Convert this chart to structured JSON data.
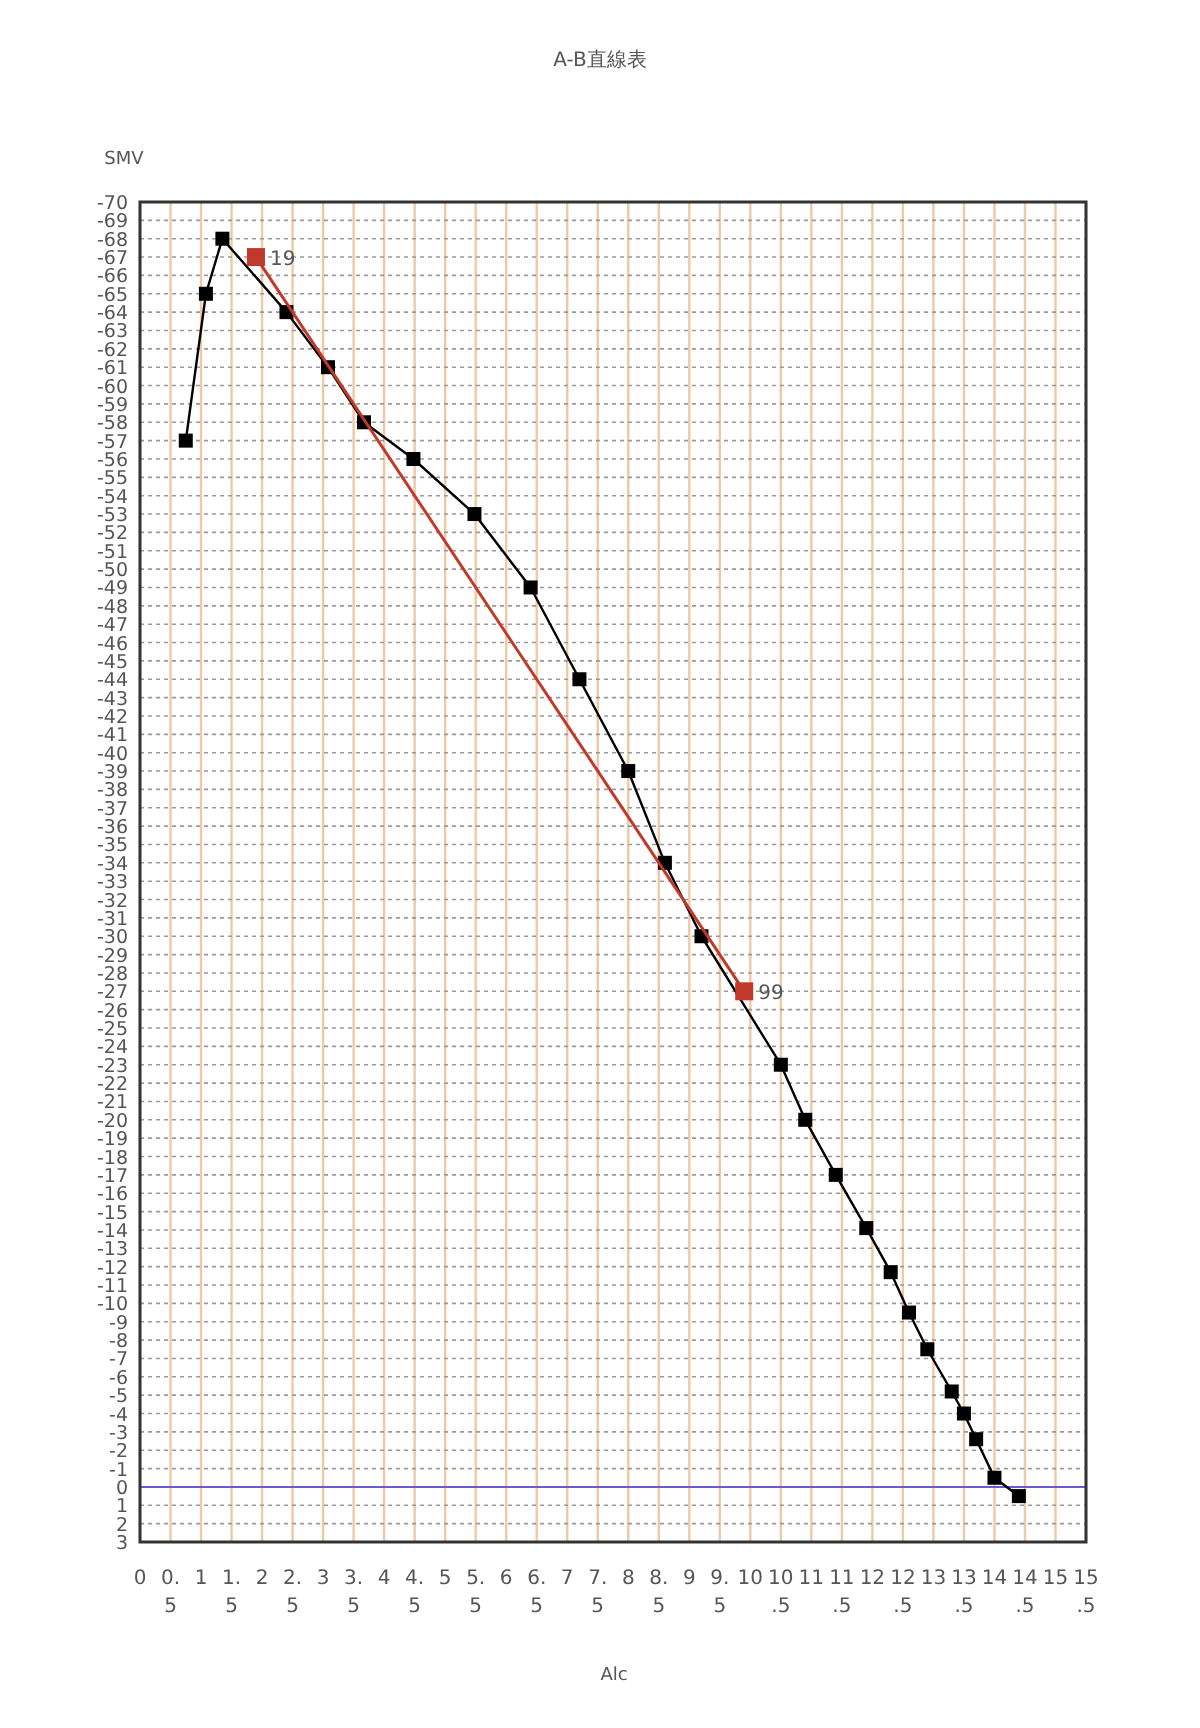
{
  "chart_data": {
    "type": "line",
    "title": "A-B直線表",
    "xlabel": "Alc",
    "ylabel": "SMV",
    "xlim": [
      0,
      15.5
    ],
    "ylim": [
      3,
      -70
    ],
    "xticks": [
      0,
      0.5,
      1,
      1.5,
      2,
      2.5,
      3,
      3.5,
      4,
      4.5,
      5,
      5.5,
      6,
      6.5,
      7,
      7.5,
      8,
      8.5,
      9,
      9.5,
      10,
      10.5,
      11,
      11.5,
      12,
      12.5,
      13,
      13.5,
      14,
      14.5,
      15,
      15.5
    ],
    "yticks": [
      -70,
      -69,
      -68,
      -67,
      -66,
      -65,
      -64,
      -63,
      -62,
      -61,
      -60,
      -59,
      -58,
      -57,
      -56,
      -55,
      -54,
      -53,
      -52,
      -51,
      -50,
      -49,
      -48,
      -47,
      -46,
      -45,
      -44,
      -43,
      -42,
      -41,
      -40,
      -39,
      -38,
      -37,
      -36,
      -35,
      -34,
      -33,
      -32,
      -31,
      -30,
      -29,
      -28,
      -27,
      -26,
      -25,
      -24,
      -23,
      -22,
      -21,
      -20,
      -19,
      -18,
      -17,
      -16,
      -15,
      -14,
      -13,
      -12,
      -11,
      -10,
      -9,
      -8,
      -7,
      -6,
      -5,
      -4,
      -3,
      -2,
      -1,
      0,
      1,
      2,
      3
    ],
    "grid": true,
    "marker": "square",
    "line_style": "solid",
    "series": [
      {
        "color": "#000000",
        "x": [
          0.75,
          1.08,
          1.35,
          2.4,
          3.08,
          3.67,
          4.48,
          5.48,
          6.4,
          7.2,
          8.0,
          8.6,
          9.2,
          10.5,
          10.9,
          11.4,
          11.9,
          12.3,
          12.6,
          12.9,
          13.3,
          13.5,
          13.7,
          14.0,
          14.4
        ],
        "values": [
          -57,
          -65,
          -68,
          -64,
          -61,
          -58,
          -56,
          -53,
          -49,
          -44,
          -39,
          -34,
          -30,
          -23,
          -20,
          -17,
          -14.1,
          -11.7,
          -9.5,
          -7.5,
          -5.2,
          -4,
          -2.6,
          -0.5,
          0.5
        ]
      },
      {
        "color": "#c0392b",
        "x": [
          1.9,
          9.9
        ],
        "values": [
          -67,
          -27
        ]
      }
    ],
    "ref_lines": [
      {
        "axis": "y",
        "value": 0,
        "color": "#6a5acd"
      }
    ],
    "annotations": [
      {
        "text": "19",
        "x": 1.9,
        "y": -67
      },
      {
        "text": "99",
        "x": 9.9,
        "y": -27
      }
    ]
  }
}
